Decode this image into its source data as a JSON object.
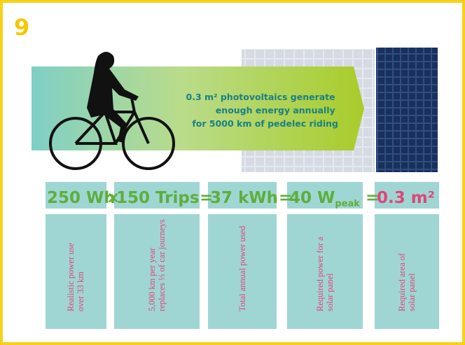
{
  "number": "9",
  "banner": {
    "lines": [
      "0.3 m² photovoltaics generate",
      "enough energy annually",
      "for 5000 km of pedelec riding"
    ]
  },
  "equation": {
    "terms": [
      {
        "value": "250 Wh",
        "description": [
          "Realistic power use",
          "over 33 km"
        ]
      },
      {
        "value": "150 Trips",
        "description": [
          "5,000 km per year",
          "replaces ⅓ of car journeys"
        ]
      },
      {
        "value": "37 kWh",
        "description": [
          "Total annual power used"
        ]
      },
      {
        "value": "40 W",
        "subscript": "peak",
        "description": [
          "Required power for a",
          "solar panel"
        ]
      },
      {
        "value": "0.3 m²",
        "description": [
          "Required area of",
          "solar panel"
        ]
      }
    ],
    "operators": [
      "×",
      "=",
      "=",
      "="
    ]
  }
}
